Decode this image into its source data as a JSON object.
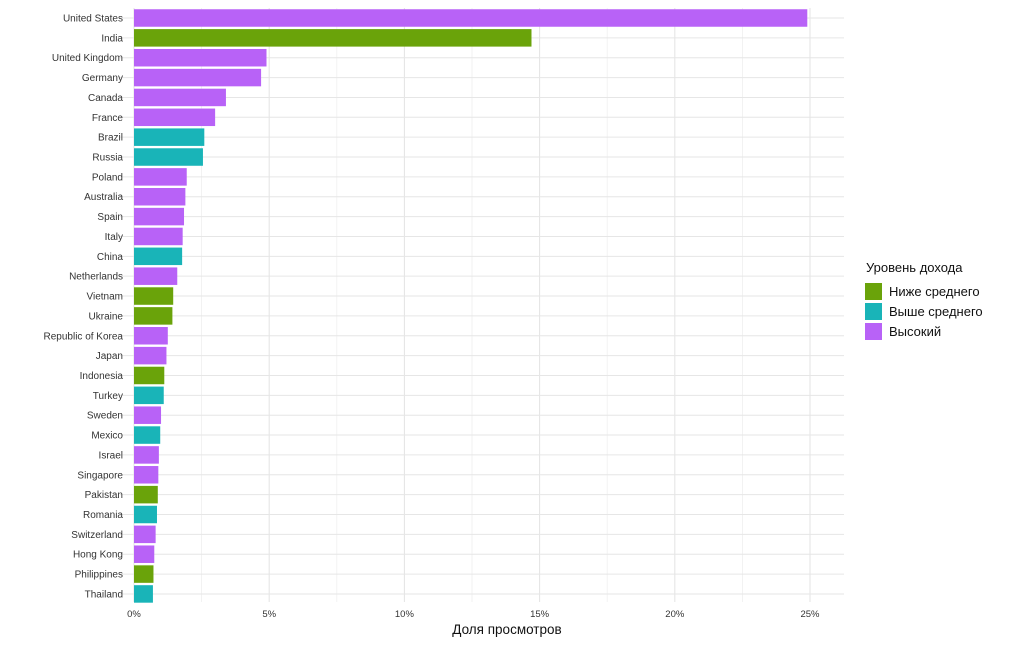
{
  "chart_data": {
    "type": "bar",
    "orientation": "horizontal",
    "categories": [
      "United States",
      "India",
      "United Kingdom",
      "Germany",
      "Canada",
      "France",
      "Brazil",
      "Russia",
      "Poland",
      "Australia",
      "Spain",
      "Italy",
      "China",
      "Netherlands",
      "Vietnam",
      "Ukraine",
      "Republic of Korea",
      "Japan",
      "Indonesia",
      "Turkey",
      "Sweden",
      "Mexico",
      "Israel",
      "Singapore",
      "Pakistan",
      "Romania",
      "Switzerland",
      "Hong Kong",
      "Philippines",
      "Thailand"
    ],
    "values": [
      24.9,
      14.7,
      4.9,
      4.7,
      3.4,
      3.0,
      2.6,
      2.55,
      1.95,
      1.9,
      1.85,
      1.8,
      1.78,
      1.6,
      1.45,
      1.42,
      1.25,
      1.2,
      1.12,
      1.1,
      1.0,
      0.97,
      0.92,
      0.9,
      0.88,
      0.85,
      0.8,
      0.75,
      0.72,
      0.7
    ],
    "groups": [
      "Высокий",
      "Ниже среднего",
      "Высокий",
      "Высокий",
      "Высокий",
      "Высокий",
      "Выше среднего",
      "Выше среднего",
      "Высокий",
      "Высокий",
      "Высокий",
      "Высокий",
      "Выше среднего",
      "Высокий",
      "Ниже среднего",
      "Ниже среднего",
      "Высокий",
      "Высокий",
      "Ниже среднего",
      "Выше среднего",
      "Высокий",
      "Выше среднего",
      "Высокий",
      "Высокий",
      "Ниже среднего",
      "Выше среднего",
      "Высокий",
      "Высокий",
      "Ниже среднего",
      "Выше среднего"
    ],
    "xlabel": "Доля просмотров",
    "ylabel": "",
    "xlim": [
      0,
      26
    ],
    "x_ticks": [
      0,
      5,
      10,
      15,
      20,
      25
    ],
    "x_tick_labels": [
      "0%",
      "5%",
      "10%",
      "15%",
      "20%",
      "25%"
    ],
    "grid": true,
    "legend": {
      "title": "Уровень дохода",
      "placement": "right",
      "entries": [
        {
          "label": "Ниже среднего",
          "color": "#6aa30a"
        },
        {
          "label": "Выше среднего",
          "color": "#19b4b8"
        },
        {
          "label": "Высокий",
          "color": "#b862f7"
        }
      ]
    }
  }
}
